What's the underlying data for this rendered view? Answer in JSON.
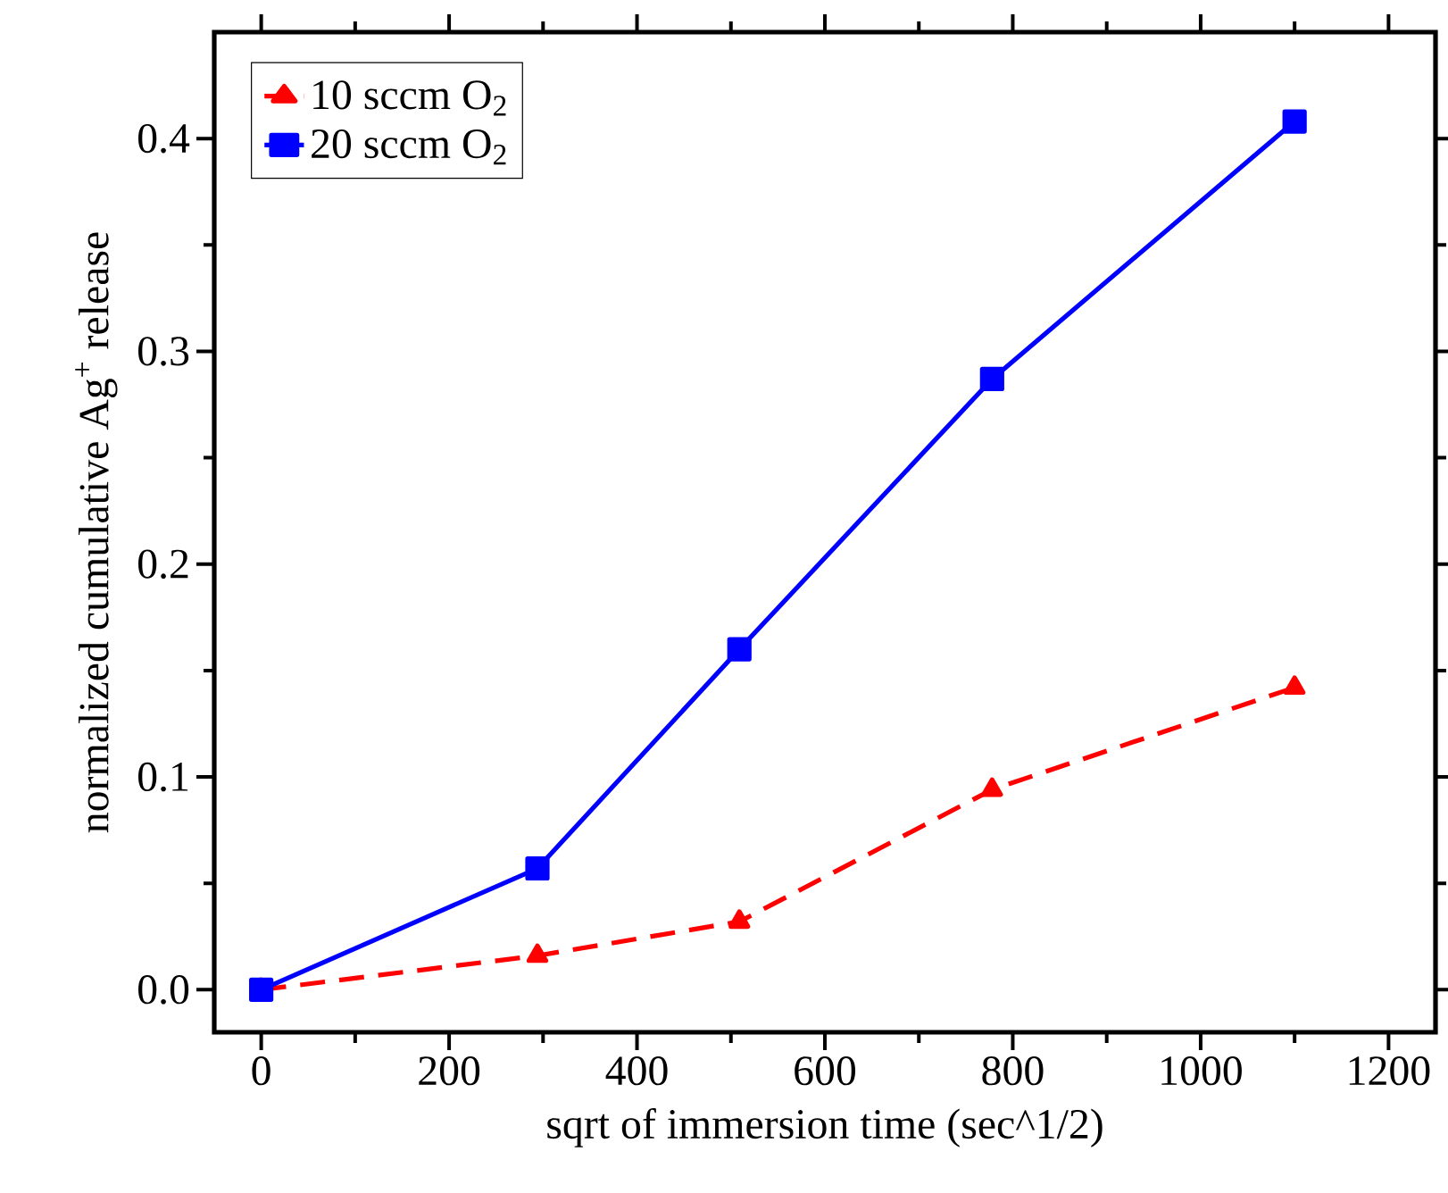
{
  "chart_data": {
    "type": "line",
    "xlabel": "sqrt of immersion time (sec^1/2)",
    "ylabel": "normalized cumulative Ag$^{+}$ release",
    "x": [
      0,
      294,
      509,
      778,
      1100
    ],
    "series": [
      {
        "name": "10 sccm O$_{2}$",
        "color": "#ff0000",
        "marker": "triangle",
        "line_style": "dashed",
        "values": [
          0,
          0.016,
          0.032,
          0.094,
          0.142
        ]
      },
      {
        "name": "20 sccm O$_{2}$",
        "color": "#0000ff",
        "marker": "square",
        "line_style": "solid",
        "values": [
          0,
          0.057,
          0.16,
          0.287,
          0.408
        ]
      }
    ],
    "xlim": [
      -50,
      1250
    ],
    "ylim": [
      -0.02,
      0.45
    ],
    "xticks": [
      0,
      200,
      400,
      600,
      800,
      1000,
      1200
    ],
    "yticks": [
      {
        "value": 0,
        "label": "0.0"
      },
      {
        "value": 0.1,
        "label": "0.1"
      },
      {
        "value": 0.2,
        "label": "0.2"
      },
      {
        "value": 0.3,
        "label": "0.3"
      },
      {
        "value": 0.4,
        "label": "0.4"
      }
    ],
    "grid": false,
    "legend": "top left"
  }
}
